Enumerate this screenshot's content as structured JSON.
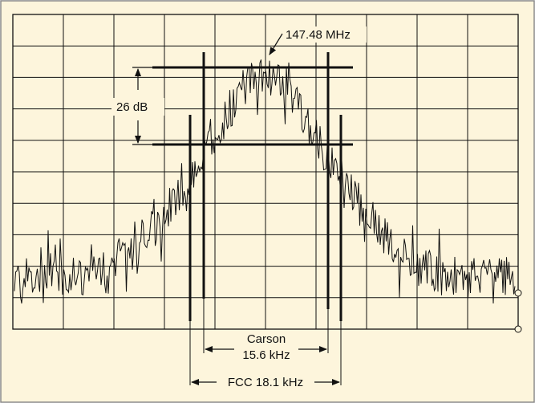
{
  "figure": {
    "colors": {
      "background": "#fdf5dc",
      "frame": "#888888",
      "ink": "#111111"
    },
    "labels": {
      "center_freq": "147.48 MHz",
      "dynamic_range": "26 dB",
      "carson_title": "Carson",
      "carson_bw": "15.6 kHz",
      "fcc_bw": "FCC 18.1 kHz"
    }
  }
}
